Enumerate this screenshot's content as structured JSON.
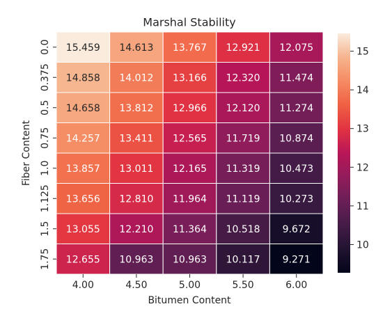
{
  "chart_data": {
    "type": "heatmap",
    "title": "Marshal Stability",
    "x_label": "Bitumen Content",
    "y_label": "Fiber Content",
    "categories": [
      "4.00",
      "4.50",
      "5.00",
      "5.50",
      "6.00"
    ],
    "rows": [
      "0.0",
      "0.375",
      "0.5",
      "0.75",
      "1.0",
      "1.125",
      "1.5",
      "1.75"
    ],
    "values": [
      [
        15.459,
        14.613,
        13.767,
        12.921,
        12.075
      ],
      [
        14.858,
        14.012,
        13.166,
        12.32,
        11.474
      ],
      [
        14.658,
        13.812,
        12.966,
        12.12,
        11.274
      ],
      [
        14.257,
        13.411,
        12.565,
        11.719,
        10.874
      ],
      [
        13.857,
        13.011,
        12.165,
        11.319,
        10.473
      ],
      [
        13.656,
        12.81,
        11.964,
        11.119,
        10.273
      ],
      [
        13.055,
        12.21,
        11.364,
        10.518,
        9.672
      ],
      [
        12.655,
        10.963,
        10.963,
        10.117,
        9.271
      ]
    ],
    "value_labels": [
      [
        "15.459",
        "14.613",
        "13.767",
        "12.921",
        "12.075"
      ],
      [
        "14.858",
        "14.012",
        "13.166",
        "12.320",
        "11.474"
      ],
      [
        "14.658",
        "13.812",
        "12.966",
        "12.120",
        "11.274"
      ],
      [
        "14.257",
        "13.411",
        "12.565",
        "11.719",
        "10.874"
      ],
      [
        "13.857",
        "13.011",
        "12.165",
        "11.319",
        "10.473"
      ],
      [
        "13.656",
        "12.810",
        "11.964",
        "11.119",
        "10.273"
      ],
      [
        "13.055",
        "12.210",
        "11.364",
        "10.518",
        "9.672"
      ],
      [
        "12.655",
        "10.963",
        "10.963",
        "10.117",
        "9.271"
      ]
    ],
    "zlim": [
      9.271,
      15.459
    ],
    "zticks": [
      10,
      11,
      12,
      13,
      14,
      15
    ],
    "colormap": [
      "#03051a",
      "#221331",
      "#451c47",
      "#6a1f56",
      "#921c5b",
      "#b91657",
      "#e13342",
      "#f06043",
      "#f58b63",
      "#f6b48e",
      "#faebdd"
    ]
  }
}
